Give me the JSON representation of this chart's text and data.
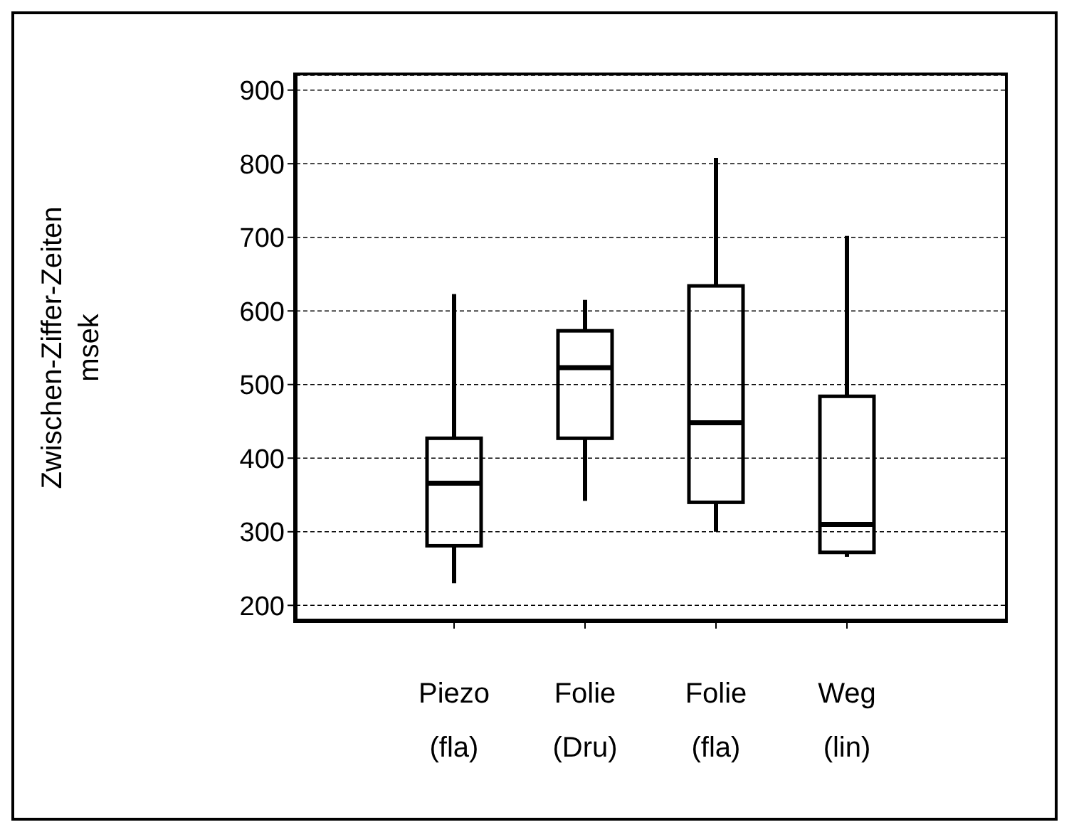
{
  "chart_data": {
    "type": "box",
    "ylabel": "Zwischen-Ziffer-Zeiten\nmsek",
    "categories": [
      "Piezo\n(fla)",
      "Folie\n(Dru)",
      "Folie\n(fla)",
      "Weg\n(lin)"
    ],
    "boxes": [
      {
        "low": 230,
        "q1": 281,
        "median": 366,
        "q3": 427,
        "high": 623
      },
      {
        "low": 342,
        "q1": 427,
        "median": 523,
        "q3": 573,
        "high": 615
      },
      {
        "low": 300,
        "q1": 340,
        "median": 448,
        "q3": 634,
        "high": 808
      },
      {
        "low": 266,
        "q1": 272,
        "median": 310,
        "q3": 484,
        "high": 702
      }
    ],
    "color": "#000000",
    "ylim": [
      180,
      920
    ],
    "yticks": [
      200,
      300,
      400,
      500,
      600,
      700,
      800,
      900
    ],
    "grid": "y",
    "legend": false
  }
}
